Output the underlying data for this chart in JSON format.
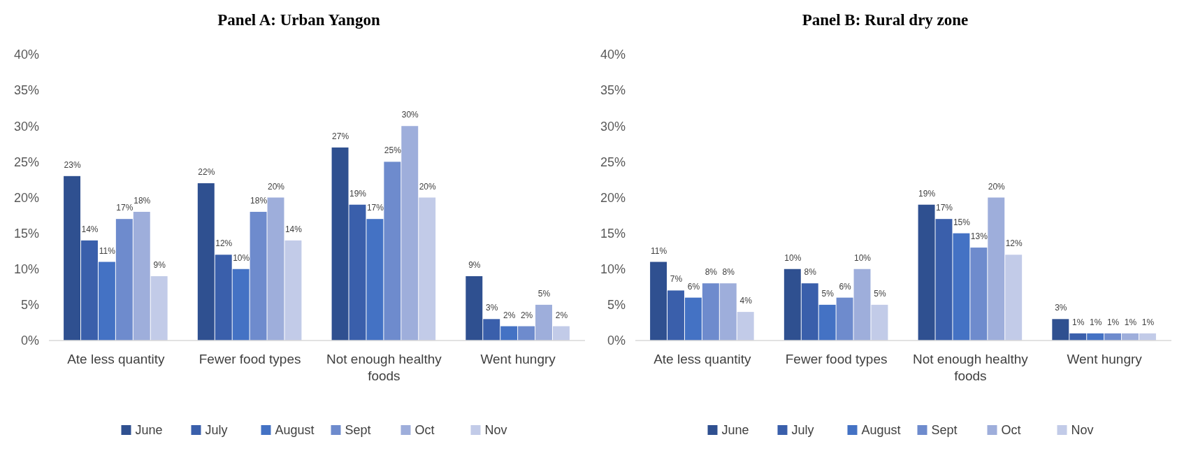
{
  "chart_data": [
    {
      "type": "bar",
      "title": "Panel A: Urban Yangon",
      "categories": [
        "Ate less quantity",
        "Fewer food types",
        "Not enough healthy foods",
        "Went hungry"
      ],
      "series": [
        {
          "name": "June",
          "color": "#2f5090",
          "values": [
            23,
            22,
            27,
            9
          ],
          "value_labels": [
            "23%",
            "22%",
            "27%",
            "9%"
          ]
        },
        {
          "name": "July",
          "color": "#3a5fab",
          "values": [
            14,
            12,
            19,
            3
          ],
          "value_labels": [
            "14%",
            "12%",
            "19%",
            "3%"
          ]
        },
        {
          "name": "August",
          "color": "#4472c4",
          "values": [
            11,
            10,
            17,
            2
          ],
          "value_labels": [
            "11%",
            "10%",
            "17%",
            "2%"
          ]
        },
        {
          "name": "Sept",
          "color": "#6e8bcd",
          "values": [
            17,
            18,
            25,
            2
          ],
          "value_labels": [
            "17%",
            "18%",
            "25%",
            "2%"
          ]
        },
        {
          "name": "Oct",
          "color": "#9eaedb",
          "values": [
            18,
            20,
            30,
            5
          ],
          "value_labels": [
            "18%",
            "20%",
            "30%",
            "5%"
          ]
        },
        {
          "name": "Nov",
          "color": "#c2cbe8",
          "values": [
            9,
            14,
            20,
            2
          ],
          "value_labels": [
            "9%",
            "14%",
            "20%",
            "2%"
          ]
        }
      ],
      "ylim": [
        0,
        40
      ],
      "yticks": [
        {
          "value": 0,
          "label": "0%"
        },
        {
          "value": 5,
          "label": "5%"
        },
        {
          "value": 10,
          "label": "10%"
        },
        {
          "value": 15,
          "label": "15%"
        },
        {
          "value": 20,
          "label": "20%"
        },
        {
          "value": 25,
          "label": "25%"
        },
        {
          "value": 30,
          "label": "30%"
        },
        {
          "value": 35,
          "label": "35%"
        },
        {
          "value": 40,
          "label": "40%"
        }
      ],
      "legend": "bottom"
    },
    {
      "type": "bar",
      "title": "Panel B: Rural dry zone",
      "categories": [
        "Ate less quantity",
        "Fewer food types",
        "Not enough healthy foods",
        "Went hungry"
      ],
      "series": [
        {
          "name": "June",
          "color": "#2f5090",
          "values": [
            11,
            10,
            19,
            3
          ],
          "value_labels": [
            "11%",
            "10%",
            "19%",
            "3%"
          ]
        },
        {
          "name": "July",
          "color": "#3a5fab",
          "values": [
            7,
            8,
            17,
            1
          ],
          "value_labels": [
            "7%",
            "8%",
            "17%",
            "1%"
          ]
        },
        {
          "name": "August",
          "color": "#4472c4",
          "values": [
            6,
            5,
            15,
            1
          ],
          "value_labels": [
            "6%",
            "5%",
            "15%",
            "1%"
          ]
        },
        {
          "name": "Sept",
          "color": "#6e8bcd",
          "values": [
            8,
            6,
            13,
            1
          ],
          "value_labels": [
            "8%",
            "6%",
            "13%",
            "1%"
          ]
        },
        {
          "name": "Oct",
          "color": "#9eaedb",
          "values": [
            8,
            10,
            20,
            1
          ],
          "value_labels": [
            "8%",
            "10%",
            "20%",
            "1%"
          ]
        },
        {
          "name": "Nov",
          "color": "#c2cbe8",
          "values": [
            4,
            5,
            12,
            1
          ],
          "value_labels": [
            "4%",
            "5%",
            "12%",
            "1%"
          ]
        }
      ],
      "ylim": [
        0,
        40
      ],
      "yticks": [
        {
          "value": 0,
          "label": "0%"
        },
        {
          "value": 5,
          "label": "5%"
        },
        {
          "value": 10,
          "label": "10%"
        },
        {
          "value": 15,
          "label": "15%"
        },
        {
          "value": 20,
          "label": "20%"
        },
        {
          "value": 25,
          "label": "25%"
        },
        {
          "value": 30,
          "label": "30%"
        },
        {
          "value": 35,
          "label": "35%"
        },
        {
          "value": 40,
          "label": "40%"
        }
      ],
      "legend": "bottom"
    }
  ]
}
